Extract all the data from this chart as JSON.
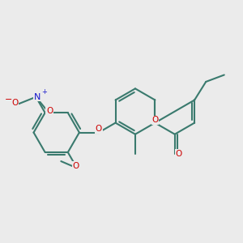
{
  "bg_color": "#ebebeb",
  "bond_color": "#3a7a6e",
  "bond_width": 1.5,
  "atom_colors": {
    "O": "#cc0000",
    "N": "#1515cc"
  },
  "font_size": 8.0
}
